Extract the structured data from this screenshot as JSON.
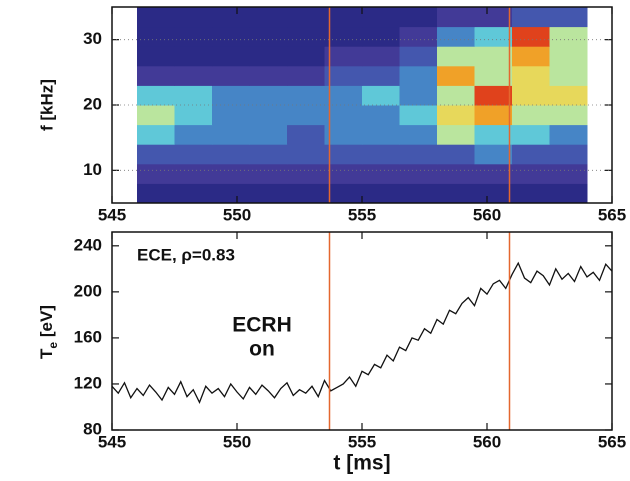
{
  "chart_data": [
    {
      "type": "heatmap",
      "x_edges": [
        546,
        547.5,
        549,
        550.5,
        552,
        553.5,
        555,
        556.5,
        558,
        559.5,
        561,
        562.5,
        564
      ],
      "y_edges": [
        5,
        8,
        11,
        14,
        17,
        20,
        23,
        26,
        29,
        32,
        35
      ],
      "z": [
        [
          1,
          1,
          1,
          1,
          1,
          1,
          1,
          1,
          1,
          1,
          1,
          1
        ],
        [
          2,
          2,
          2,
          2,
          2,
          2,
          2,
          2,
          2,
          2,
          2,
          2
        ],
        [
          3,
          3,
          3,
          3,
          3,
          3,
          3,
          3,
          3,
          4,
          3,
          3
        ],
        [
          5,
          4,
          4,
          4,
          3,
          4,
          4,
          4,
          6,
          5,
          5,
          4
        ],
        [
          6,
          5,
          4,
          4,
          4,
          4,
          4,
          5,
          7,
          8,
          6,
          6
        ],
        [
          5,
          5,
          4,
          4,
          4,
          4,
          5,
          4,
          6,
          9,
          7,
          7
        ],
        [
          2,
          2,
          2,
          2,
          2,
          3,
          3,
          4,
          8,
          6,
          7,
          6
        ],
        [
          1,
          1,
          1,
          1,
          1,
          2,
          2,
          3,
          6,
          6,
          8,
          6
        ],
        [
          1,
          1,
          1,
          1,
          1,
          1,
          1,
          2,
          4,
          5,
          9,
          6
        ],
        [
          1,
          1,
          1,
          1,
          1,
          1,
          1,
          1,
          2,
          2,
          3,
          3
        ]
      ],
      "colorscale": [
        "#2b2a86",
        "#4a3f9c",
        "#3d6fc0",
        "#5fc8d8",
        "#d8ef8a",
        "#f5c02c",
        "#e0421c"
      ],
      "ylabel": "f [kHz]",
      "xlim": [
        545,
        565
      ],
      "xticks": [
        545,
        550,
        555,
        560,
        565
      ],
      "ylim": [
        5,
        35
      ],
      "yticks": [
        10,
        20,
        30
      ],
      "grid": true,
      "vlines": [
        553.7,
        560.9
      ],
      "vline_color": "#e4672e"
    },
    {
      "type": "line",
      "x": [
        545,
        545.25,
        545.5,
        545.75,
        546,
        546.25,
        546.5,
        546.75,
        547,
        547.25,
        547.5,
        547.75,
        548,
        548.25,
        548.5,
        548.75,
        549,
        549.25,
        549.5,
        549.75,
        550,
        550.25,
        550.5,
        550.75,
        551,
        551.25,
        551.5,
        551.75,
        552,
        552.25,
        552.5,
        552.75,
        553,
        553.25,
        553.5,
        553.75,
        554,
        554.25,
        554.5,
        554.75,
        555,
        555.25,
        555.5,
        555.75,
        556,
        556.25,
        556.5,
        556.75,
        557,
        557.25,
        557.5,
        557.75,
        558,
        558.25,
        558.5,
        558.75,
        559,
        559.25,
        559.5,
        559.75,
        560,
        560.25,
        560.5,
        560.75,
        561,
        561.25,
        561.5,
        561.75,
        562,
        562.25,
        562.5,
        562.75,
        563,
        563.25,
        563.5,
        563.75,
        564,
        564.25,
        564.5,
        564.75,
        565
      ],
      "values": [
        118,
        112,
        121,
        108,
        116,
        110,
        119,
        113,
        106,
        117,
        111,
        122,
        109,
        115,
        104,
        118,
        112,
        116,
        109,
        120,
        113,
        107,
        117,
        111,
        119,
        114,
        108,
        116,
        121,
        110,
        115,
        112,
        118,
        109,
        123,
        114,
        117,
        120,
        126,
        118,
        131,
        128,
        137,
        134,
        145,
        140,
        152,
        149,
        160,
        158,
        168,
        164,
        176,
        172,
        184,
        181,
        190,
        195,
        188,
        203,
        198,
        207,
        210,
        203,
        215,
        225,
        212,
        208,
        218,
        214,
        206,
        220,
        211,
        216,
        209,
        222,
        213,
        217,
        210,
        224,
        218
      ],
      "color": "#111111",
      "xlabel": "t [ms]",
      "ylabel": {
        "main": "T",
        "sub": "e",
        "unit": " [eV]"
      },
      "annotations": [
        "ECE, ρ=0.83",
        "ECRH",
        "on"
      ],
      "xlim": [
        545,
        565
      ],
      "xticks": [
        545,
        550,
        555,
        560,
        565
      ],
      "ylim": [
        80,
        252
      ],
      "yticks": [
        80,
        120,
        160,
        200,
        240
      ],
      "vlines": [
        553.7,
        560.9
      ],
      "vline_color": "#e4672e"
    }
  ]
}
